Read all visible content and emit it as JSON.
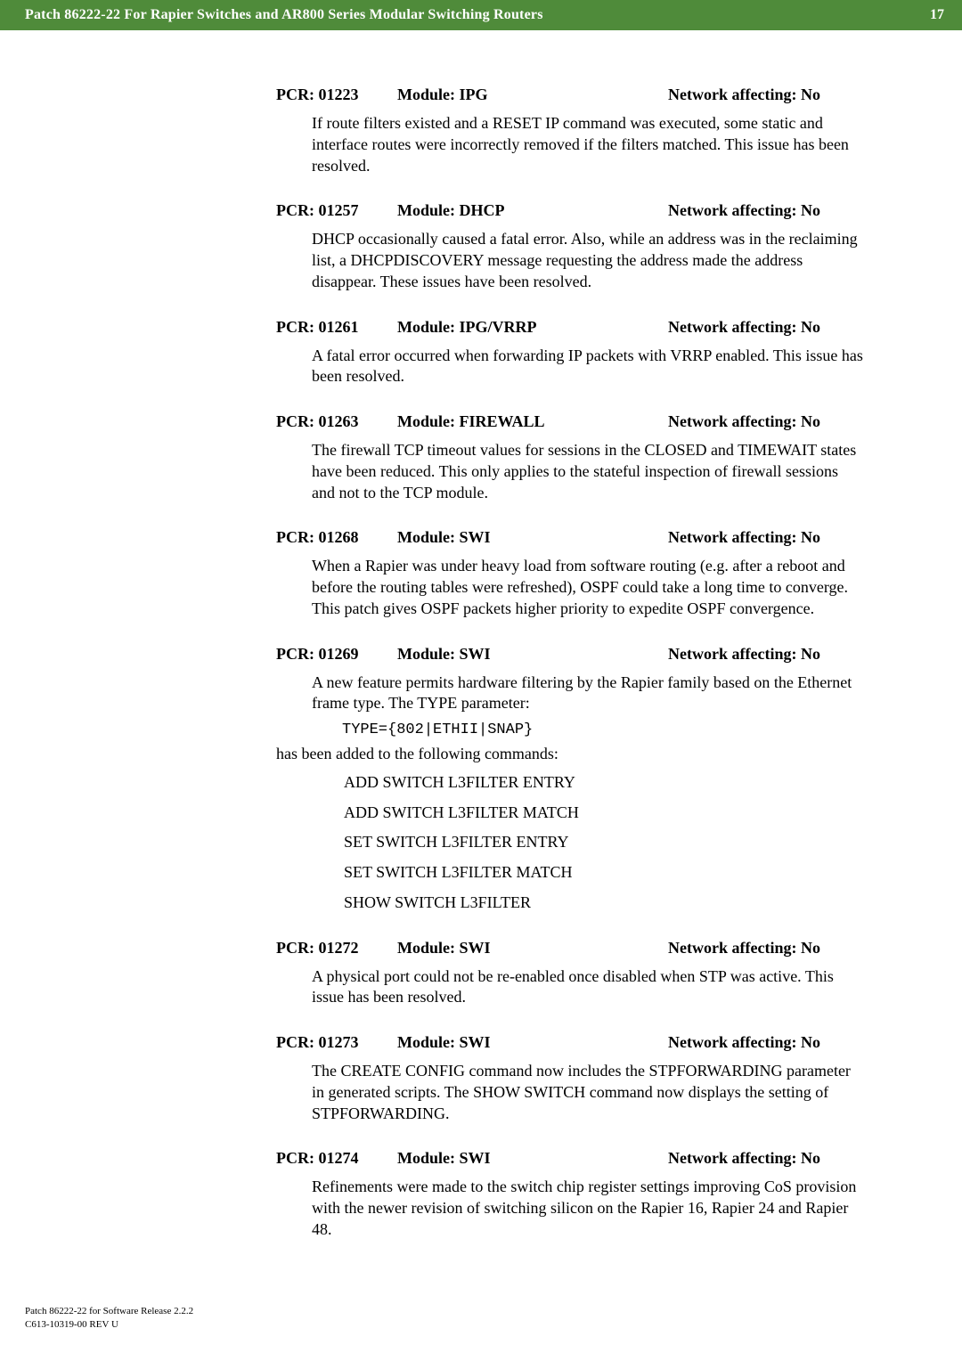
{
  "header": {
    "title": "Patch 86222-22 For Rapier Switches and AR800 Series Modular Switching Routers",
    "page_number": "17"
  },
  "entries": [
    {
      "pcr": "PCR: 01223",
      "module": "Module: IPG",
      "network": "Network affecting: No",
      "paragraphs": [
        "If route filters existed and a RESET IP command was executed, some static and interface routes were incorrectly removed if the filters matched. This issue has been resolved."
      ]
    },
    {
      "pcr": "PCR: 01257",
      "module": "Module: DHCP",
      "network": "Network affecting: No",
      "paragraphs": [
        "DHCP occasionally caused a fatal error. Also, while an address was in the reclaiming list, a DHCPDISCOVERY message requesting the address made the address disappear. These issues have been resolved."
      ]
    },
    {
      "pcr": "PCR: 01261",
      "module": "Module: IPG/VRRP",
      "network": "Network affecting: No",
      "paragraphs": [
        "A fatal error occurred when forwarding IP packets with VRRP enabled. This issue has been resolved."
      ]
    },
    {
      "pcr": "PCR: 01263",
      "module": "Module: FIREWALL",
      "network": "Network affecting: No",
      "paragraphs": [
        "The firewall TCP timeout values for sessions in the CLOSED and TIMEWAIT states have been reduced. This only applies to the stateful inspection of firewall sessions and not to the TCP module."
      ]
    },
    {
      "pcr": "PCR: 01268",
      "module": "Module: SWI",
      "network": "Network affecting: No",
      "paragraphs": [
        "When a Rapier was under heavy load from software routing (e.g. after a reboot and before the routing tables were refreshed), OSPF could take a long time to converge. This patch gives OSPF packets higher priority to expedite OSPF convergence."
      ]
    },
    {
      "pcr": "PCR: 01269",
      "module": "Module: SWI",
      "network": "Network affecting: No",
      "intro1": "A new feature permits hardware filtering by the Rapier family based on the Ethernet frame type. The TYPE parameter:",
      "mono": "TYPE={802|ETHII|SNAP}",
      "intro2": "has been added to the following commands:",
      "commands": [
        "ADD SWITCH L3FILTER ENTRY",
        "ADD SWITCH L3FILTER MATCH",
        "SET SWITCH L3FILTER ENTRY",
        "SET SWITCH L3FILTER MATCH",
        "SHOW SWITCH L3FILTER"
      ]
    },
    {
      "pcr": "PCR: 01272",
      "module": "Module: SWI",
      "network": "Network affecting: No",
      "paragraphs": [
        "A physical port could not be re-enabled once disabled when STP was active. This issue has been resolved."
      ]
    },
    {
      "pcr": "PCR: 01273",
      "module": "Module: SWI",
      "network": "Network affecting: No",
      "paragraphs": [
        "The CREATE CONFIG command now includes the STPFORWARDING parameter in generated scripts. The SHOW SWITCH command now displays the setting of STPFORWARDING."
      ]
    },
    {
      "pcr": "PCR: 01274",
      "module": "Module: SWI",
      "network": "Network affecting: No",
      "paragraphs": [
        "Refinements were made to the switch chip register settings improving CoS provision with the newer revision of switching silicon on the Rapier 16, Rapier 24 and Rapier 48."
      ]
    }
  ],
  "footer": {
    "line1": "Patch 86222-22 for Software Release 2.2.2",
    "line2": "C613-10319-00 REV U"
  }
}
